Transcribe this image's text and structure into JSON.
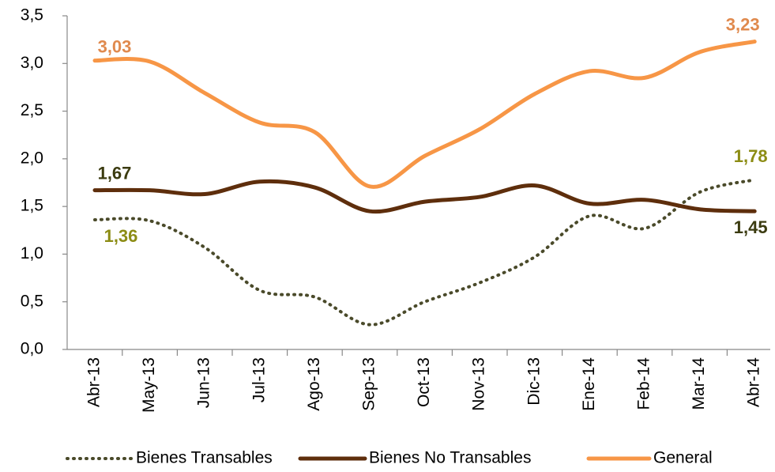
{
  "chart_data": {
    "type": "line",
    "categories": [
      "Abr-13",
      "May-13",
      "Jun-13",
      "Jul-13",
      "Ago-13",
      "Sep-13",
      "Oct-13",
      "Nov-13",
      "Dic-13",
      "Ene-14",
      "Feb-14",
      "Mar-14",
      "Abr-14"
    ],
    "series": [
      {
        "name": "Bienes Transables",
        "color": "#4a4a2a",
        "dash": "dotted",
        "label_color": "#8c8c14",
        "values": [
          1.36,
          1.35,
          1.07,
          0.62,
          0.55,
          0.26,
          0.5,
          0.7,
          0.97,
          1.4,
          1.27,
          1.65,
          1.78
        ],
        "value_labels": [
          "1,36",
          null,
          null,
          null,
          null,
          null,
          null,
          null,
          null,
          null,
          null,
          null,
          "1,78"
        ]
      },
      {
        "name": "Bienes No Transables",
        "color": "#5e2e0c",
        "dash": "solid",
        "label_color": "#3b3b10",
        "values": [
          1.67,
          1.67,
          1.63,
          1.76,
          1.7,
          1.45,
          1.55,
          1.6,
          1.72,
          1.53,
          1.57,
          1.47,
          1.45
        ],
        "value_labels": [
          "1,67",
          null,
          null,
          null,
          null,
          null,
          null,
          null,
          null,
          null,
          null,
          null,
          "1,45"
        ]
      },
      {
        "name": "General",
        "color": "#f79646",
        "dash": "solid",
        "label_color": "#e08a4e",
        "values": [
          3.03,
          3.02,
          2.69,
          2.38,
          2.28,
          1.71,
          2.03,
          2.31,
          2.68,
          2.92,
          2.85,
          3.12,
          3.23
        ],
        "value_labels": [
          "3,03",
          null,
          null,
          null,
          null,
          null,
          null,
          null,
          null,
          null,
          null,
          null,
          "3,23"
        ]
      }
    ],
    "ylim": [
      0,
      3.5
    ],
    "yticks": [
      {
        "value": 0,
        "label": "0,0"
      },
      {
        "value": 0.5,
        "label": "0,5"
      },
      {
        "value": 1,
        "label": "1,0"
      },
      {
        "value": 1.5,
        "label": "1,5"
      },
      {
        "value": 2,
        "label": "2,0"
      },
      {
        "value": 2.5,
        "label": "2,5"
      },
      {
        "value": 3,
        "label": "3,0"
      },
      {
        "value": 3.5,
        "label": "3,5"
      }
    ]
  }
}
